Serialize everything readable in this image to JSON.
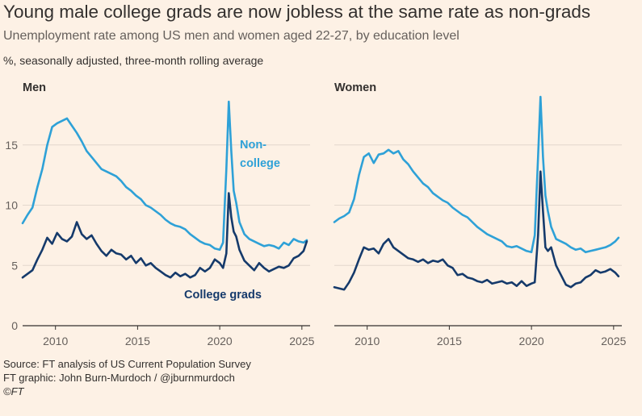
{
  "title": "Young male college grads are now jobless at the same rate as non-grads",
  "subtitle": "Unemployment rate among US men and women aged 22-27, by education level",
  "units": "%, seasonally adjusted, three-month rolling average",
  "footer": {
    "source": "Source: FT analysis of US Current Population Survey",
    "graphic": "FT graphic: John Burn-Murdoch / @jburnmurdoch",
    "copyright": "©FT"
  },
  "colors": {
    "non_college": "#2ea1d7",
    "college": "#153a6b",
    "axis": "#33302e",
    "grid": "#e3d8cd"
  },
  "chart_data": [
    {
      "type": "line",
      "title": "Men",
      "xlim": [
        2008,
        2025.5
      ],
      "ylim": [
        0,
        19
      ],
      "xticks": [
        2010,
        2015,
        2020,
        2025
      ],
      "yticks": [
        0,
        5,
        10,
        15
      ],
      "series_labels": {
        "non_college": [
          "Non-",
          "college"
        ],
        "college": "College grads"
      },
      "series": [
        {
          "name": "Non-college",
          "key": "non_college",
          "x": [
            2008.0,
            2008.3,
            2008.6,
            2008.9,
            2009.2,
            2009.5,
            2009.8,
            2010.1,
            2010.4,
            2010.7,
            2011.0,
            2011.3,
            2011.6,
            2011.9,
            2012.2,
            2012.5,
            2012.8,
            2013.1,
            2013.4,
            2013.7,
            2014.0,
            2014.3,
            2014.6,
            2014.9,
            2015.2,
            2015.5,
            2015.8,
            2016.1,
            2016.4,
            2016.7,
            2017.0,
            2017.3,
            2017.6,
            2017.9,
            2018.2,
            2018.5,
            2018.8,
            2019.1,
            2019.4,
            2019.7,
            2020.0,
            2020.2,
            2020.4,
            2020.55,
            2020.7,
            2020.85,
            2021.0,
            2021.2,
            2021.5,
            2021.8,
            2022.1,
            2022.4,
            2022.7,
            2023.0,
            2023.3,
            2023.6,
            2023.9,
            2024.2,
            2024.5,
            2024.8,
            2025.1,
            2025.3
          ],
          "values": [
            8.5,
            9.2,
            9.8,
            11.5,
            13.0,
            15.0,
            16.5,
            16.8,
            17.0,
            17.2,
            16.6,
            16.0,
            15.3,
            14.5,
            14.0,
            13.5,
            13.0,
            12.8,
            12.6,
            12.4,
            12.0,
            11.5,
            11.2,
            10.8,
            10.5,
            10.0,
            9.8,
            9.5,
            9.2,
            8.8,
            8.5,
            8.3,
            8.2,
            8.0,
            7.6,
            7.3,
            7.0,
            6.8,
            6.7,
            6.4,
            6.3,
            6.9,
            13.0,
            18.6,
            14.5,
            11.2,
            10.2,
            8.6,
            7.6,
            7.2,
            7.0,
            6.8,
            6.6,
            6.7,
            6.6,
            6.4,
            6.9,
            6.7,
            7.2,
            7.0,
            6.9,
            7.1
          ]
        },
        {
          "name": "College grads",
          "key": "college",
          "x": [
            2008.0,
            2008.3,
            2008.6,
            2008.9,
            2009.2,
            2009.5,
            2009.8,
            2010.1,
            2010.4,
            2010.7,
            2011.0,
            2011.3,
            2011.6,
            2011.9,
            2012.2,
            2012.5,
            2012.8,
            2013.1,
            2013.4,
            2013.7,
            2014.0,
            2014.3,
            2014.6,
            2014.9,
            2015.2,
            2015.5,
            2015.8,
            2016.1,
            2016.4,
            2016.7,
            2017.0,
            2017.3,
            2017.6,
            2017.9,
            2018.2,
            2018.5,
            2018.8,
            2019.1,
            2019.4,
            2019.7,
            2020.0,
            2020.2,
            2020.4,
            2020.55,
            2020.7,
            2020.85,
            2021.0,
            2021.2,
            2021.5,
            2021.8,
            2022.1,
            2022.4,
            2022.7,
            2023.0,
            2023.3,
            2023.6,
            2023.9,
            2024.2,
            2024.5,
            2024.8,
            2025.1,
            2025.3
          ],
          "values": [
            4.0,
            4.3,
            4.6,
            5.5,
            6.3,
            7.3,
            6.8,
            7.7,
            7.2,
            7.0,
            7.4,
            8.6,
            7.6,
            7.2,
            7.5,
            6.8,
            6.2,
            5.8,
            6.3,
            6.0,
            5.9,
            5.5,
            5.8,
            5.2,
            5.6,
            5.0,
            5.2,
            4.8,
            4.5,
            4.2,
            4.0,
            4.4,
            4.1,
            4.3,
            4.0,
            4.2,
            4.8,
            4.5,
            4.8,
            5.5,
            5.2,
            4.8,
            6.0,
            11.0,
            9.0,
            7.8,
            7.4,
            6.3,
            5.4,
            5.0,
            4.6,
            5.2,
            4.8,
            4.5,
            4.7,
            4.9,
            4.8,
            5.0,
            5.6,
            5.8,
            6.2,
            7.0
          ]
        }
      ]
    },
    {
      "type": "line",
      "title": "Women",
      "xlim": [
        2008,
        2025.5
      ],
      "ylim": [
        0,
        19
      ],
      "xticks": [
        2010,
        2015,
        2020,
        2025
      ],
      "yticks": [
        0,
        5,
        10,
        15
      ],
      "series": [
        {
          "name": "Non-college",
          "key": "non_college",
          "x": [
            2008.0,
            2008.3,
            2008.6,
            2008.9,
            2009.2,
            2009.5,
            2009.8,
            2010.1,
            2010.4,
            2010.7,
            2011.0,
            2011.3,
            2011.6,
            2011.9,
            2012.2,
            2012.5,
            2012.8,
            2013.1,
            2013.4,
            2013.7,
            2014.0,
            2014.3,
            2014.6,
            2014.9,
            2015.2,
            2015.5,
            2015.8,
            2016.1,
            2016.4,
            2016.7,
            2017.0,
            2017.3,
            2017.6,
            2017.9,
            2018.2,
            2018.5,
            2018.8,
            2019.1,
            2019.4,
            2019.7,
            2020.0,
            2020.2,
            2020.4,
            2020.55,
            2020.7,
            2020.85,
            2021.0,
            2021.2,
            2021.5,
            2021.8,
            2022.1,
            2022.4,
            2022.7,
            2023.0,
            2023.3,
            2023.6,
            2023.9,
            2024.2,
            2024.5,
            2024.8,
            2025.1,
            2025.3
          ],
          "values": [
            8.6,
            8.9,
            9.1,
            9.4,
            10.5,
            12.5,
            14.0,
            14.3,
            13.5,
            14.2,
            14.3,
            14.6,
            14.3,
            14.5,
            13.8,
            13.4,
            12.8,
            12.3,
            11.8,
            11.5,
            11.0,
            10.7,
            10.4,
            10.2,
            9.8,
            9.5,
            9.2,
            9.0,
            8.6,
            8.2,
            7.9,
            7.6,
            7.4,
            7.2,
            7.0,
            6.6,
            6.5,
            6.6,
            6.4,
            6.2,
            6.1,
            7.5,
            14.0,
            19.0,
            14.0,
            10.8,
            9.5,
            8.2,
            7.2,
            7.0,
            6.8,
            6.5,
            6.3,
            6.4,
            6.1,
            6.2,
            6.3,
            6.4,
            6.5,
            6.7,
            7.0,
            7.3
          ]
        },
        {
          "name": "College grads",
          "key": "college",
          "x": [
            2008.0,
            2008.3,
            2008.6,
            2008.9,
            2009.2,
            2009.5,
            2009.8,
            2010.1,
            2010.4,
            2010.7,
            2011.0,
            2011.3,
            2011.6,
            2011.9,
            2012.2,
            2012.5,
            2012.8,
            2013.1,
            2013.4,
            2013.7,
            2014.0,
            2014.3,
            2014.6,
            2014.9,
            2015.2,
            2015.5,
            2015.8,
            2016.1,
            2016.4,
            2016.7,
            2017.0,
            2017.3,
            2017.6,
            2017.9,
            2018.2,
            2018.5,
            2018.8,
            2019.1,
            2019.4,
            2019.7,
            2020.0,
            2020.2,
            2020.4,
            2020.55,
            2020.7,
            2020.85,
            2021.0,
            2021.2,
            2021.5,
            2021.8,
            2022.1,
            2022.4,
            2022.7,
            2023.0,
            2023.3,
            2023.6,
            2023.9,
            2024.2,
            2024.5,
            2024.8,
            2025.1,
            2025.3
          ],
          "values": [
            3.2,
            3.1,
            3.0,
            3.6,
            4.4,
            5.5,
            6.5,
            6.3,
            6.4,
            6.0,
            6.8,
            7.2,
            6.5,
            6.2,
            5.9,
            5.6,
            5.5,
            5.3,
            5.5,
            5.2,
            5.4,
            5.3,
            5.5,
            5.0,
            4.8,
            4.2,
            4.3,
            4.0,
            3.9,
            3.7,
            3.6,
            3.8,
            3.5,
            3.6,
            3.7,
            3.5,
            3.6,
            3.3,
            3.7,
            3.3,
            3.5,
            3.6,
            7.5,
            12.8,
            9.5,
            6.5,
            6.2,
            6.5,
            5.0,
            4.2,
            3.4,
            3.2,
            3.5,
            3.6,
            4.0,
            4.2,
            4.6,
            4.4,
            4.5,
            4.7,
            4.4,
            4.1
          ]
        }
      ]
    }
  ]
}
